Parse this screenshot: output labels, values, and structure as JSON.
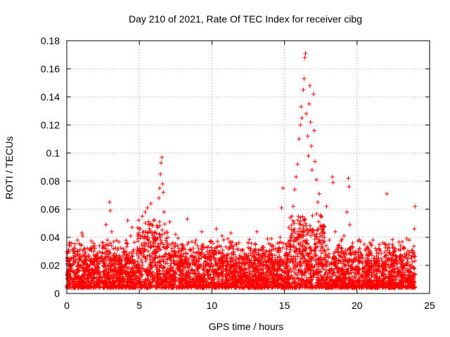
{
  "chart_data": {
    "type": "scatter",
    "title": "Day 210 of 2021, Rate Of TEC Index for receiver cibg",
    "xlabel": "GPS time / hours",
    "ylabel": "ROTI / TECUs",
    "xlim": [
      0,
      25
    ],
    "ylim": [
      0,
      0.18
    ],
    "xticks": [
      0,
      5,
      10,
      15,
      20,
      25
    ],
    "xtick_labels": [
      "0",
      "5",
      "10",
      "15",
      "20",
      "25"
    ],
    "yticks": [
      0,
      0.02,
      0.04,
      0.06,
      0.08,
      0.1,
      0.12,
      0.14,
      0.16,
      0.18
    ],
    "ytick_labels": [
      "0",
      "0.02",
      "0.04",
      "0.06",
      "0.08",
      "0.1",
      "0.12",
      "0.14",
      "0.16",
      "0.18"
    ],
    "grid": true,
    "marker": "+",
    "series_color": "#ff0000",
    "series": [
      {
        "name": "ROTI",
        "points": [
          [
            0.05,
            0.011
          ],
          [
            0.15,
            0.024
          ],
          [
            0.3,
            0.018
          ],
          [
            0.45,
            0.03
          ],
          [
            0.6,
            0.014
          ],
          [
            0.75,
            0.022
          ],
          [
            0.9,
            0.028
          ],
          [
            1.05,
            0.043
          ],
          [
            1.1,
            0.041
          ],
          [
            1.2,
            0.016
          ],
          [
            1.35,
            0.026
          ],
          [
            1.5,
            0.019
          ],
          [
            1.7,
            0.033
          ],
          [
            1.9,
            0.021
          ],
          [
            2.1,
            0.027
          ],
          [
            2.3,
            0.015
          ],
          [
            2.5,
            0.034
          ],
          [
            2.7,
            0.049
          ],
          [
            2.8,
            0.038
          ],
          [
            2.95,
            0.065
          ],
          [
            3.0,
            0.059
          ],
          [
            3.1,
            0.044
          ],
          [
            3.3,
            0.025
          ],
          [
            3.5,
            0.031
          ],
          [
            3.7,
            0.018
          ],
          [
            3.9,
            0.029
          ],
          [
            4.1,
            0.036
          ],
          [
            4.2,
            0.052
          ],
          [
            4.4,
            0.041
          ],
          [
            4.5,
            0.047
          ],
          [
            4.7,
            0.023
          ],
          [
            4.9,
            0.039
          ],
          [
            5.05,
            0.046
          ],
          [
            5.2,
            0.055
          ],
          [
            5.4,
            0.058
          ],
          [
            5.55,
            0.061
          ],
          [
            5.7,
            0.049
          ],
          [
            5.8,
            0.064
          ],
          [
            5.9,
            0.043
          ],
          [
            6.0,
            0.052
          ],
          [
            6.1,
            0.038
          ],
          [
            6.25,
            0.047
          ],
          [
            6.35,
            0.068
          ],
          [
            6.4,
            0.075
          ],
          [
            6.45,
            0.085
          ],
          [
            6.5,
            0.093
          ],
          [
            6.55,
            0.097
          ],
          [
            6.6,
            0.078
          ],
          [
            6.65,
            0.072
          ],
          [
            6.7,
            0.058
          ],
          [
            6.9,
            0.044
          ],
          [
            7.1,
            0.051
          ],
          [
            7.3,
            0.036
          ],
          [
            7.5,
            0.042
          ],
          [
            7.7,
            0.029
          ],
          [
            7.9,
            0.035
          ],
          [
            8.1,
            0.022
          ],
          [
            8.3,
            0.053
          ],
          [
            8.5,
            0.031
          ],
          [
            8.7,
            0.024
          ],
          [
            8.9,
            0.038
          ],
          [
            9.1,
            0.027
          ],
          [
            9.3,
            0.044
          ],
          [
            9.5,
            0.033
          ],
          [
            9.7,
            0.021
          ],
          [
            9.9,
            0.037
          ],
          [
            10.1,
            0.029
          ],
          [
            10.3,
            0.046
          ],
          [
            10.5,
            0.034
          ],
          [
            10.7,
            0.041
          ],
          [
            10.9,
            0.026
          ],
          [
            11.1,
            0.039
          ],
          [
            11.3,
            0.043
          ],
          [
            11.5,
            0.028
          ],
          [
            11.7,
            0.035
          ],
          [
            11.9,
            0.022
          ],
          [
            12.1,
            0.031
          ],
          [
            12.3,
            0.025
          ],
          [
            12.5,
            0.036
          ],
          [
            12.7,
            0.019
          ],
          [
            12.9,
            0.028
          ],
          [
            13.1,
            0.044
          ],
          [
            13.3,
            0.023
          ],
          [
            13.5,
            0.033
          ],
          [
            13.7,
            0.018
          ],
          [
            13.9,
            0.026
          ],
          [
            14.1,
            0.039
          ],
          [
            14.3,
            0.021
          ],
          [
            14.5,
            0.03
          ],
          [
            14.7,
            0.04
          ],
          [
            14.8,
            0.061
          ],
          [
            14.9,
            0.075
          ],
          [
            15.1,
            0.035
          ],
          [
            15.3,
            0.047
          ],
          [
            15.5,
            0.055
          ],
          [
            15.6,
            0.062
          ],
          [
            15.7,
            0.074
          ],
          [
            15.8,
            0.083
          ],
          [
            15.9,
            0.092
          ],
          [
            16.0,
            0.11
          ],
          [
            16.1,
            0.12
          ],
          [
            16.15,
            0.133
          ],
          [
            16.2,
            0.125
          ],
          [
            16.3,
            0.145
          ],
          [
            16.35,
            0.153
          ],
          [
            16.4,
            0.168
          ],
          [
            16.45,
            0.171
          ],
          [
            16.5,
            0.128
          ],
          [
            16.6,
            0.112
          ],
          [
            16.65,
            0.098
          ],
          [
            16.7,
            0.135
          ],
          [
            16.75,
            0.148
          ],
          [
            16.8,
            0.122
          ],
          [
            16.85,
            0.105
          ],
          [
            16.9,
            0.088
          ],
          [
            17.0,
            0.142
          ],
          [
            17.05,
            0.116
          ],
          [
            17.1,
            0.094
          ],
          [
            17.2,
            0.081
          ],
          [
            17.3,
            0.065
          ],
          [
            17.4,
            0.071
          ],
          [
            17.5,
            0.055
          ],
          [
            17.7,
            0.047
          ],
          [
            17.9,
            0.062
          ],
          [
            18.1,
            0.038
          ],
          [
            18.3,
            0.083
          ],
          [
            18.35,
            0.079
          ],
          [
            18.5,
            0.044
          ],
          [
            18.7,
            0.034
          ],
          [
            18.9,
            0.029
          ],
          [
            19.1,
            0.041
          ],
          [
            19.3,
            0.058
          ],
          [
            19.4,
            0.082
          ],
          [
            19.45,
            0.076
          ],
          [
            19.5,
            0.049
          ],
          [
            19.7,
            0.036
          ],
          [
            19.9,
            0.024
          ],
          [
            20.1,
            0.031
          ],
          [
            20.3,
            0.027
          ],
          [
            20.5,
            0.035
          ],
          [
            20.7,
            0.021
          ],
          [
            20.9,
            0.029
          ],
          [
            21.1,
            0.038
          ],
          [
            21.3,
            0.023
          ],
          [
            21.5,
            0.032
          ],
          [
            21.7,
            0.019
          ],
          [
            21.9,
            0.026
          ],
          [
            22.05,
            0.071
          ],
          [
            22.2,
            0.035
          ],
          [
            22.4,
            0.022
          ],
          [
            22.6,
            0.03
          ],
          [
            22.8,
            0.018
          ],
          [
            23.0,
            0.027
          ],
          [
            23.2,
            0.033
          ],
          [
            23.4,
            0.021
          ],
          [
            23.6,
            0.038
          ],
          [
            23.8,
            0.029
          ],
          [
            23.95,
            0.046
          ],
          [
            24.0,
            0.062
          ]
        ]
      }
    ]
  }
}
